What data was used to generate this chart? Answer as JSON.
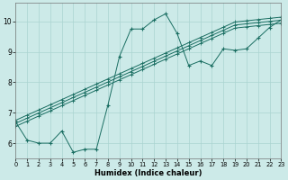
{
  "xlabel": "Humidex (Indice chaleur)",
  "bg_color": "#cceae8",
  "grid_color": "#aad4d0",
  "line_color": "#1a6e62",
  "x_min": 0,
  "x_max": 23,
  "y_min": 5.5,
  "y_max": 10.6,
  "yticks": [
    6,
    7,
    8,
    9,
    10
  ],
  "xticks": [
    0,
    1,
    2,
    3,
    4,
    5,
    6,
    7,
    8,
    9,
    10,
    11,
    12,
    13,
    14,
    15,
    16,
    17,
    18,
    19,
    20,
    21,
    22,
    23
  ],
  "line1_x": [
    0,
    1,
    2,
    3,
    4,
    5,
    6,
    7,
    8,
    9,
    10,
    11,
    12,
    13,
    14,
    15,
    16,
    17,
    18,
    19,
    20,
    21,
    22,
    23
  ],
  "line1_y": [
    6.55,
    6.72,
    6.89,
    7.06,
    7.23,
    7.4,
    7.57,
    7.74,
    7.91,
    8.08,
    8.25,
    8.42,
    8.59,
    8.76,
    8.93,
    9.1,
    9.27,
    9.44,
    9.61,
    9.78,
    9.82,
    9.86,
    9.9,
    9.94
  ],
  "line2_x": [
    0,
    1,
    2,
    3,
    4,
    5,
    6,
    7,
    8,
    9,
    10,
    11,
    12,
    13,
    14,
    15,
    16,
    17,
    18,
    19,
    20,
    21,
    22,
    23
  ],
  "line2_y": [
    6.65,
    6.82,
    6.99,
    7.16,
    7.33,
    7.5,
    7.67,
    7.84,
    8.01,
    8.18,
    8.35,
    8.52,
    8.69,
    8.86,
    9.03,
    9.2,
    9.37,
    9.54,
    9.71,
    9.88,
    9.92,
    9.96,
    10.0,
    10.04
  ],
  "line3_x": [
    0,
    1,
    2,
    3,
    4,
    5,
    6,
    7,
    8,
    9,
    10,
    11,
    12,
    13,
    14,
    15,
    16,
    17,
    18,
    19,
    20,
    21,
    22,
    23
  ],
  "line3_y": [
    6.75,
    6.92,
    7.09,
    7.26,
    7.43,
    7.6,
    7.77,
    7.94,
    8.11,
    8.28,
    8.45,
    8.62,
    8.79,
    8.96,
    9.13,
    9.3,
    9.47,
    9.64,
    9.81,
    9.98,
    10.02,
    10.06,
    10.1,
    10.14
  ],
  "jagged_x": [
    0,
    1,
    2,
    3,
    4,
    5,
    6,
    7,
    8,
    9,
    10,
    11,
    12,
    13,
    14,
    15,
    16,
    17,
    18,
    19,
    20,
    21,
    22,
    23
  ],
  "jagged_y": [
    6.7,
    6.1,
    6.0,
    6.0,
    6.4,
    5.7,
    5.8,
    5.8,
    7.25,
    8.85,
    9.75,
    9.75,
    10.05,
    10.25,
    9.6,
    8.55,
    8.7,
    8.55,
    9.1,
    9.05,
    9.1,
    9.45,
    9.8,
    10.05
  ]
}
